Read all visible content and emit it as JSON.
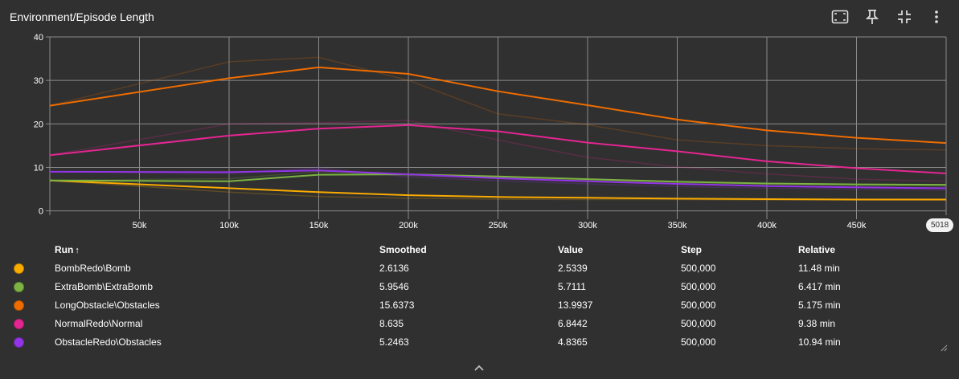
{
  "card": {
    "title": "Environment/Episode Length"
  },
  "toolbar": {
    "icons": [
      "fit-domain-icon",
      "pin-icon",
      "collapse-icon",
      "more-vert-icon"
    ]
  },
  "step_badge": "5018",
  "table": {
    "headers": {
      "run": "Run",
      "sort_indicator": "↑",
      "smoothed": "Smoothed",
      "value": "Value",
      "step": "Step",
      "relative": "Relative"
    },
    "rows": [
      {
        "color": "#f9ab00",
        "run": "BombRedo\\Bomb",
        "smoothed": "2.6136",
        "value": "2.5339",
        "step": "500,000",
        "relative": "11.48 min"
      },
      {
        "color": "#7cb342",
        "run": "ExtraBomb\\ExtraBomb",
        "smoothed": "5.9546",
        "value": "5.7111",
        "step": "500,000",
        "relative": "6.417 min"
      },
      {
        "color": "#ef6c00",
        "run": "LongObstacle\\Obstacles",
        "smoothed": "15.6373",
        "value": "13.9937",
        "step": "500,000",
        "relative": "5.175 min"
      },
      {
        "color": "#e52592",
        "run": "NormalRedo\\Normal",
        "smoothed": "8.635",
        "value": "6.8442",
        "step": "500,000",
        "relative": "9.38 min"
      },
      {
        "color": "#9334e6",
        "run": "ObstacleRedo\\Obstacles",
        "smoothed": "5.2463",
        "value": "4.8365",
        "step": "500,000",
        "relative": "10.94 min"
      }
    ]
  },
  "chart_data": {
    "type": "line",
    "title": "Environment/Episode Length",
    "xlim": [
      0,
      500000
    ],
    "ylim": [
      -1,
      40
    ],
    "x_ticks": [
      50000,
      100000,
      150000,
      200000,
      250000,
      300000,
      350000,
      400000,
      450000
    ],
    "x_tick_labels": [
      "50k",
      "100k",
      "150k",
      "200k",
      "250k",
      "300k",
      "350k",
      "400k",
      "450k"
    ],
    "y_ticks": [
      0,
      10,
      20,
      30,
      40
    ],
    "y_tick_labels": [
      "0",
      "10",
      "20",
      "30",
      "40"
    ],
    "grid": true,
    "x": [
      0,
      100000,
      150000,
      200000,
      250000,
      300000,
      350000,
      400000,
      450000,
      500000
    ],
    "series": [
      {
        "name": "BombRedo\\Bomb",
        "color": "#f9ab00",
        "smoothed": [
          7.0,
          5.2,
          4.3,
          3.6,
          3.2,
          3.0,
          2.8,
          2.7,
          2.6,
          2.6
        ],
        "raw": [
          7.0,
          4.3,
          3.3,
          2.9,
          2.7,
          2.6,
          2.6,
          2.5,
          2.5,
          2.5
        ]
      },
      {
        "name": "ExtraBomb\\ExtraBomb",
        "color": "#7cb342",
        "smoothed": [
          7.0,
          6.8,
          8.3,
          8.4,
          7.9,
          7.3,
          6.7,
          6.3,
          6.1,
          6.0
        ],
        "raw": [
          7.0,
          7.4,
          9.0,
          8.2,
          7.6,
          7.0,
          6.5,
          6.1,
          5.9,
          5.7
        ]
      },
      {
        "name": "LongObstacle\\Obstacles",
        "color": "#ef6c00",
        "smoothed": [
          24.2,
          30.5,
          33.0,
          31.5,
          27.5,
          24.3,
          21.0,
          18.5,
          16.8,
          15.6
        ],
        "raw": [
          24.2,
          34.3,
          35.3,
          30.0,
          22.3,
          19.8,
          16.3,
          15.0,
          14.3,
          14.0
        ]
      },
      {
        "name": "NormalRedo\\Normal",
        "color": "#e52592",
        "smoothed": [
          12.8,
          17.3,
          18.9,
          19.7,
          18.3,
          15.7,
          13.7,
          11.4,
          9.8,
          8.6
        ],
        "raw": [
          12.8,
          20.0,
          20.3,
          20.8,
          16.3,
          12.3,
          10.1,
          8.5,
          7.3,
          6.8
        ]
      },
      {
        "name": "ObstacleRedo\\Obstacles",
        "color": "#9334e6",
        "smoothed": [
          9.0,
          8.9,
          9.3,
          8.4,
          7.5,
          6.8,
          6.2,
          5.7,
          5.4,
          5.2
        ],
        "raw": [
          9.0,
          8.6,
          9.9,
          7.8,
          6.9,
          6.2,
          5.6,
          5.2,
          5.0,
          4.8
        ]
      }
    ]
  }
}
